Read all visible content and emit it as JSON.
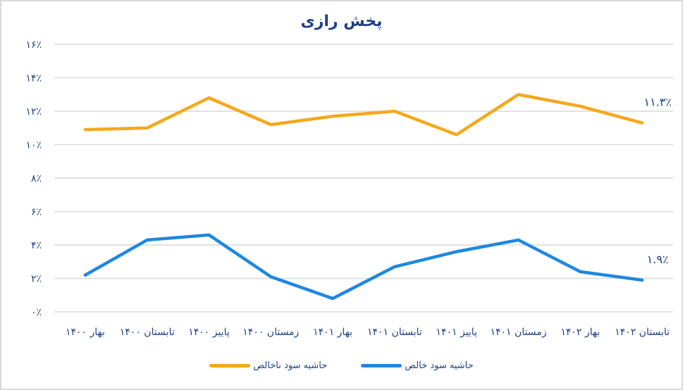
{
  "chart_data": {
    "type": "line",
    "title": "پخش رازی",
    "xlabel": "",
    "ylabel": "",
    "ylim": [
      0,
      16
    ],
    "grid": true,
    "legend_position": "bottom",
    "y_ticks": [
      "۰٪",
      "۲٪",
      "۴٪",
      "۶٪",
      "۸٪",
      "۱۰٪",
      "۱۲٪",
      "۱۴٪",
      "۱۶٪"
    ],
    "y_tick_values": [
      0,
      2,
      4,
      6,
      8,
      10,
      12,
      14,
      16
    ],
    "categories": [
      "بهار ۱۴۰۰",
      "تابستان ۱۴۰۰",
      "پاییز ۱۴۰۰",
      "زمستان ۱۴۰۰",
      "بهار ۱۴۰۱",
      "تابستان ۱۴۰۱",
      "پاییز ۱۴۰۱",
      "زمستان ۱۴۰۱",
      "بهار ۱۴۰۲",
      "تابستان ۱۴۰۲"
    ],
    "series": [
      {
        "name": "حاشیه سود ناخالص",
        "color": "#f5a81c",
        "values": [
          10.9,
          11.0,
          12.8,
          11.2,
          11.7,
          12.0,
          10.6,
          13.0,
          12.3,
          11.3
        ],
        "last_label": "۱۱.۳٪"
      },
      {
        "name": "حاشیه سود خالص",
        "color": "#1f87e0",
        "values": [
          2.2,
          4.3,
          4.6,
          2.1,
          0.8,
          2.7,
          3.6,
          4.3,
          2.4,
          1.9
        ],
        "last_label": "۱.۹٪"
      }
    ]
  },
  "colors": {
    "text": "#1f3f86",
    "grid": "#d9d9d9",
    "border": "#d9d9d9"
  }
}
